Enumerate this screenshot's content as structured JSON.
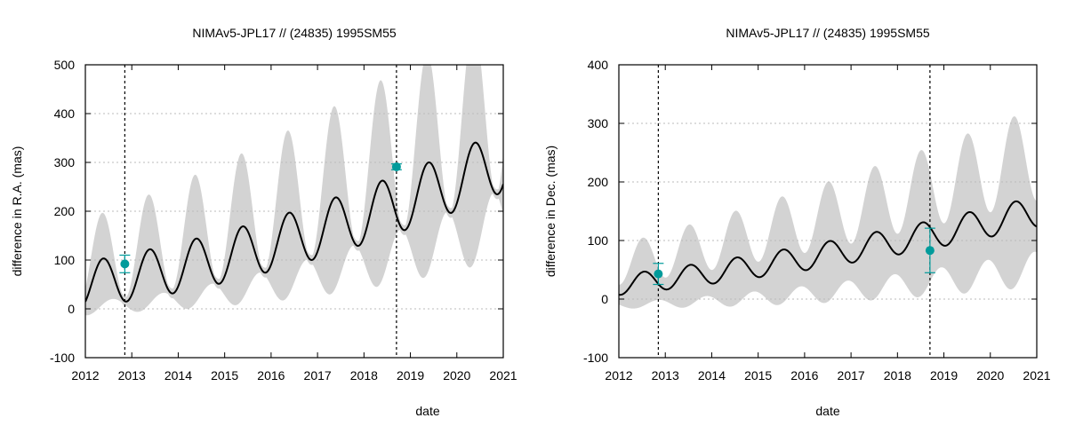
{
  "chart_data": [
    {
      "type": "line",
      "title": "NIMAv5-JPL17 // (24835) 1995SM55",
      "xlabel": "date",
      "ylabel": "difference in R.A. (mas)",
      "xlim": [
        2012,
        2021
      ],
      "ylim": [
        -100,
        500
      ],
      "xticks": [
        2012,
        2013,
        2014,
        2015,
        2016,
        2017,
        2018,
        2019,
        2020,
        2021
      ],
      "yticks": [
        -100,
        0,
        100,
        200,
        300,
        400,
        500
      ],
      "xtick_labels": [
        "2012",
        "2013",
        "2014",
        "2015",
        "2016",
        "2017",
        "2018",
        "2019",
        "2020",
        "2021"
      ],
      "ytick_labels": [
        "-100",
        "0",
        "100",
        "200",
        "300",
        "400",
        "500"
      ],
      "grid": true,
      "vlines": [
        2012.85,
        2018.7
      ],
      "model": {
        "name": "difference",
        "trend": [
          0,
          71,
          14.2,
          49.8
        ],
        "amplitude": [
          47,
          16.5
        ],
        "phase": 0.385,
        "envelope": {
          "base": 48,
          "slope": 9,
          "var": 40,
          "varSlope": 10,
          "phaseOffset": 0.05
        }
      },
      "points": [
        {
          "x": 2012.85,
          "y": 92,
          "err": 18
        },
        {
          "x": 2018.7,
          "y": 291,
          "err": 6
        }
      ],
      "colors": {
        "curve": "#000000",
        "band": "#d3d3d3",
        "point": "#009b9b",
        "grid": "#bbbbbb"
      }
    },
    {
      "type": "line",
      "title": "NIMAv5-JPL17 // (24835) 1995SM55",
      "xlabel": "date",
      "ylabel": "difference in Dec. (mas)",
      "xlim": [
        2012,
        2021
      ],
      "ylim": [
        -100,
        400
      ],
      "xticks": [
        2012,
        2013,
        2014,
        2015,
        2016,
        2017,
        2018,
        2019,
        2020,
        2021
      ],
      "yticks": [
        -100,
        0,
        100,
        200,
        300,
        400
      ],
      "xtick_labels": [
        "2012",
        "2013",
        "2014",
        "2015",
        "2016",
        "2017",
        "2018",
        "2019",
        "2020",
        "2021"
      ],
      "ytick_labels": [
        "-100",
        "0",
        "100",
        "200",
        "300",
        "400"
      ],
      "grid": true,
      "vlines": [
        2012.85,
        2018.7
      ],
      "model": {
        "name": "difference",
        "trend": [
          0,
          4.6,
          9.6,
          24
        ],
        "amplitude": [
          17,
          9.2
        ],
        "phase": 0.54,
        "envelope": {
          "base": 35,
          "slope": 7,
          "var": 18,
          "varSlope": 4,
          "phaseOffset": 0.05
        }
      },
      "points": [
        {
          "x": 2012.85,
          "y": 43,
          "err": 18
        },
        {
          "x": 2018.7,
          "y": 83,
          "err": 38
        }
      ],
      "colors": {
        "curve": "#000000",
        "band": "#d3d3d3",
        "point": "#009b9b",
        "grid": "#bbbbbb"
      }
    }
  ]
}
